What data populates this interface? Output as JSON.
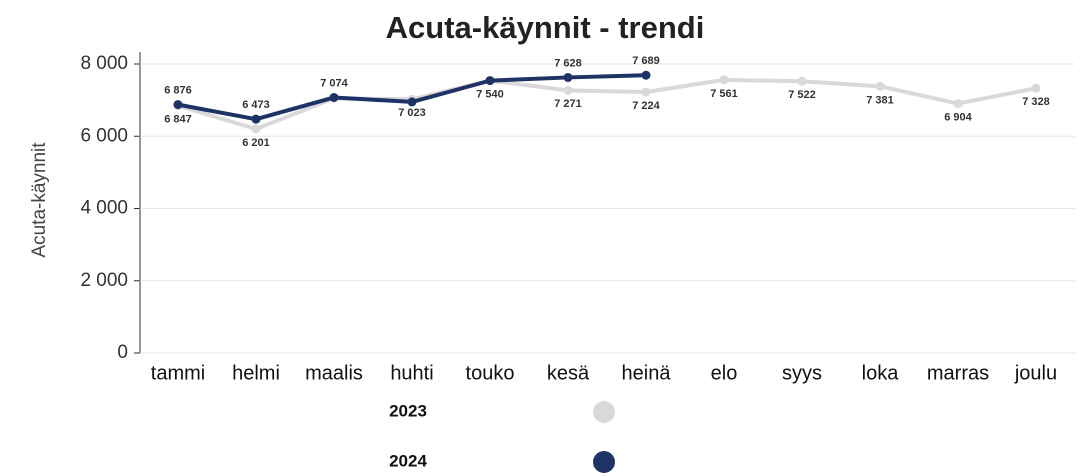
{
  "chart_data": {
    "type": "line",
    "title": "Acuta-käynnit - trendi",
    "y_label": "Acuta-käynnit",
    "categories": [
      "tammi",
      "helmi",
      "maalis",
      "huhti",
      "touko",
      "kesä",
      "heinä",
      "elo",
      "syys",
      "loka",
      "marras",
      "joulu"
    ],
    "series": [
      {
        "name": "2023",
        "color": "#d9d9d9",
        "values": [
          6847,
          6201,
          7050,
          7023,
          7540,
          7271,
          7224,
          7561,
          7522,
          7381,
          6904,
          7328
        ],
        "value_labels": [
          "6 847",
          "6 201",
          null,
          "7 023",
          "7 540",
          "7 271",
          "7 224",
          "7 561",
          "7 522",
          "7 381",
          "6 904",
          "7 328"
        ]
      },
      {
        "name": "2024",
        "color": "#1f3266",
        "values": [
          6876,
          6473,
          7074,
          6950,
          7540,
          7628,
          7689,
          null,
          null,
          null,
          null,
          null
        ],
        "value_labels": [
          "6 876",
          "6 473",
          "7 074",
          null,
          null,
          "7 628",
          "7 689",
          null,
          null,
          null,
          null,
          null
        ]
      }
    ],
    "ylim": [
      0,
      8000
    ],
    "yticks": [
      0,
      {
        "value": 2000,
        "label": "2 000"
      },
      {
        "value": 4000,
        "label": "4 000"
      },
      {
        "value": 6000,
        "label": "6 000"
      },
      {
        "value": 8000,
        "label": "8 000"
      }
    ],
    "grid": true
  }
}
